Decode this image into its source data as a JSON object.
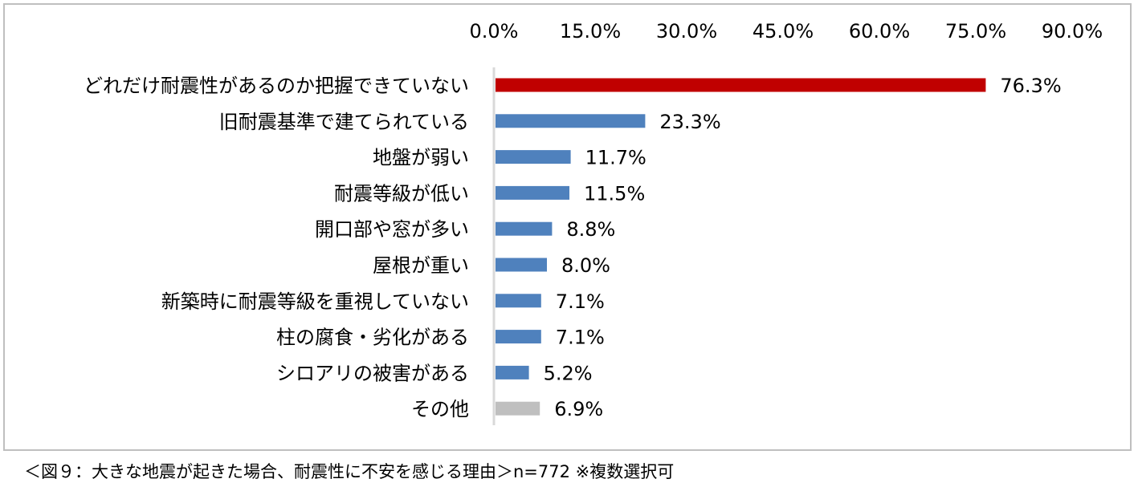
{
  "chart_data": {
    "type": "bar",
    "orientation": "horizontal",
    "categories": [
      "どれだけ耐震性があるのか把握できていない",
      "旧耐震基準で建てられている",
      "地盤が弱い",
      "耐震等級が低い",
      "開口部や窓が多い",
      "屋根が重い",
      "新築時に耐震等級を重視していない",
      "柱の腐食・劣化がある",
      "シロアリの被害がある",
      "その他"
    ],
    "values": [
      76.3,
      23.3,
      11.7,
      11.5,
      8.8,
      8.0,
      7.1,
      7.1,
      5.2,
      6.9
    ],
    "data_labels": [
      "76.3%",
      "23.3%",
      "11.7%",
      "11.5%",
      "8.8%",
      "8.0%",
      "7.1%",
      "7.1%",
      "5.2%",
      "6.9%"
    ],
    "colors": [
      "#C00000",
      "#4F81BD",
      "#4F81BD",
      "#4F81BD",
      "#4F81BD",
      "#4F81BD",
      "#4F81BD",
      "#4F81BD",
      "#4F81BD",
      "#BFBFBF"
    ],
    "xlim": [
      0,
      90
    ],
    "xticks": [
      0,
      15,
      30,
      45,
      60,
      75,
      90
    ],
    "xtick_labels": [
      "0.0%",
      "15.0%",
      "30.0%",
      "45.0%",
      "60.0%",
      "75.0%",
      "90.0%"
    ],
    "axis_position": "top",
    "grid": false,
    "legend": "none",
    "title": "",
    "xlabel": "",
    "ylabel": ""
  },
  "caption": "＜図９：大きな地震が起きた場合、耐震性に不安を感じる理由＞n=772 ※複数選択可"
}
